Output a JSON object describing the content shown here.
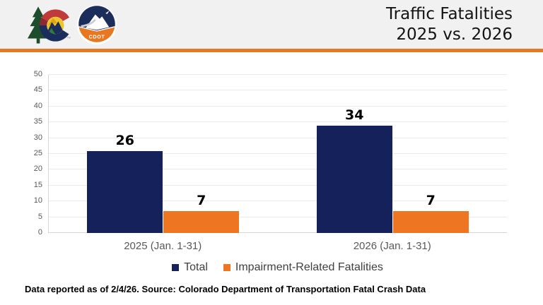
{
  "header": {
    "title_line1": "Traffic Fatalities",
    "title_line2": "2025 vs. 2026",
    "colorado_logo": "colorado-state-logo",
    "cdot_logo": "cdot-mountain-logo",
    "cdot_text": "CDOT",
    "trademark": "TM"
  },
  "colors": {
    "header_bg": "#F1F1F2",
    "divider_orange": "#E87722",
    "total_navy": "#15215B",
    "impairment_orange": "#EE7623",
    "gridline": "#EAEAEA",
    "axis_line": "#D6D6D6",
    "tick_text": "#595959"
  },
  "chart_data": {
    "type": "bar",
    "title": "Traffic Fatalities 2025 vs. 2026",
    "categories": [
      "2025 (Jan. 1-31)",
      "2026 (Jan. 1-31)"
    ],
    "series": [
      {
        "name": "Total",
        "color": "#15215B",
        "values": [
          26,
          34
        ]
      },
      {
        "name": "Impairment-Related Fatalities",
        "color": "#EE7623",
        "values": [
          7,
          7
        ]
      }
    ],
    "xlabel": "",
    "ylabel": "",
    "ylim": [
      0,
      50
    ],
    "ytick_step": 5,
    "grid": true,
    "legend_position": "bottom"
  },
  "footer": {
    "note": "Data reported as of 2/4/26. Source: Colorado Department of Transportation Fatal Crash Data"
  }
}
